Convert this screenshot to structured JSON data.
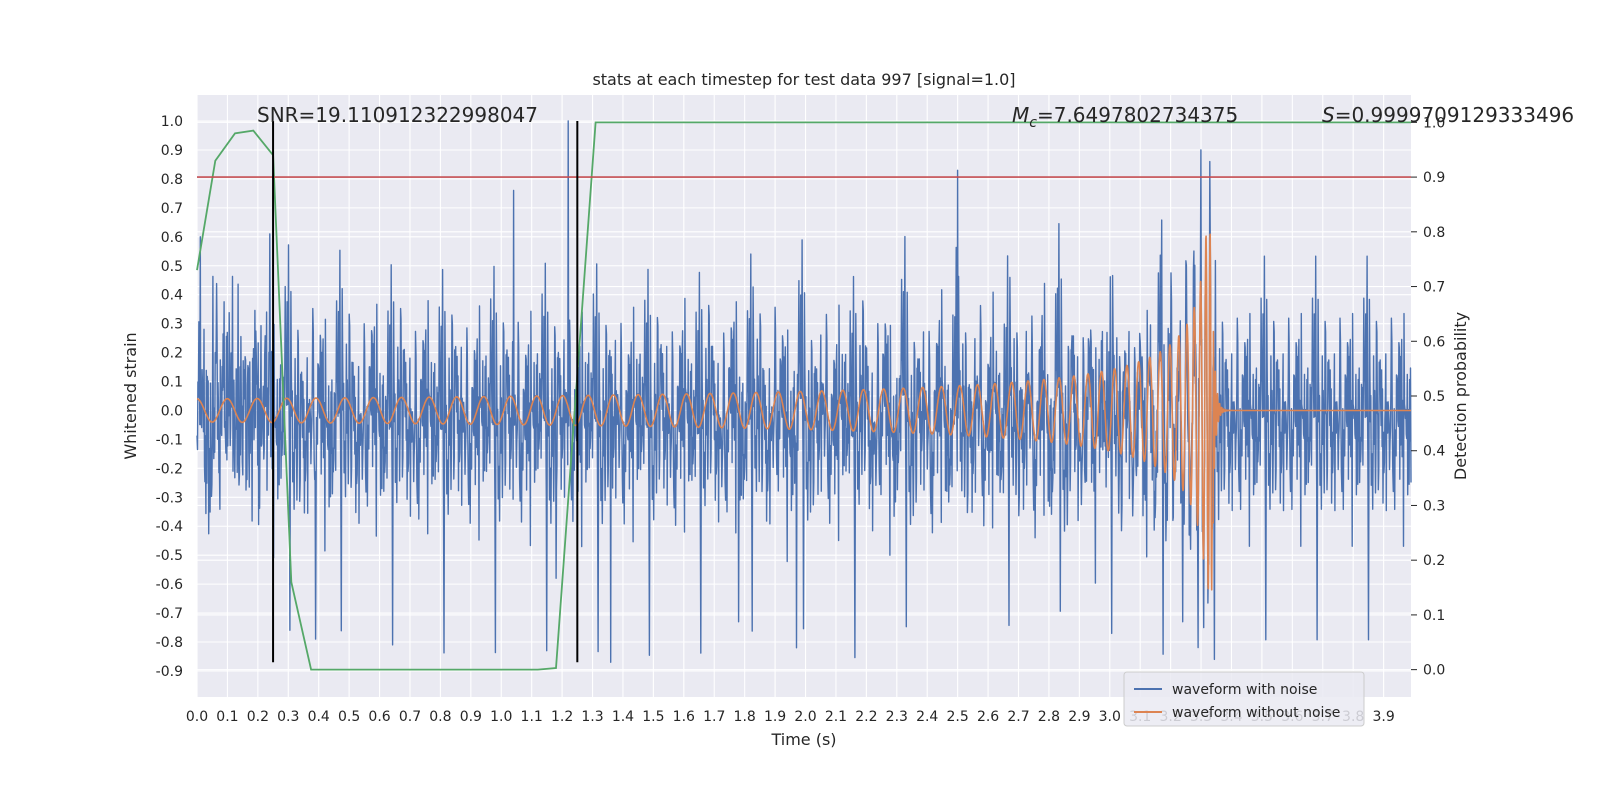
{
  "chart_data": {
    "type": "line",
    "title": "stats at each timestep for test data 997 [signal=1.0]",
    "xlabel": "Time (s)",
    "ylabel": "Whitened strain",
    "y2label": "Detection probability",
    "xlim": [
      0.0,
      3.99
    ],
    "ylim": [
      -0.99,
      1.09
    ],
    "y2lim": [
      -0.05,
      1.05
    ],
    "x_ticks": [
      "0.0",
      "0.1",
      "0.2",
      "0.3",
      "0.4",
      "0.5",
      "0.6",
      "0.7",
      "0.8",
      "0.9",
      "1.0",
      "1.1",
      "1.2",
      "1.3",
      "1.4",
      "1.5",
      "1.6",
      "1.7",
      "1.8",
      "1.9",
      "2.0",
      "2.1",
      "2.2",
      "2.3",
      "2.4",
      "2.5",
      "2.6",
      "2.7",
      "2.8",
      "2.9",
      "3.0",
      "3.1",
      "3.2",
      "3.3",
      "3.4",
      "3.5",
      "3.6",
      "3.7",
      "3.8",
      "3.9"
    ],
    "y_ticks": [
      "1.0",
      "0.9",
      "0.8",
      "0.7",
      "0.6",
      "0.5",
      "0.4",
      "0.3",
      "0.2",
      "0.1",
      "0.0",
      "-0.1",
      "-0.2",
      "-0.3",
      "-0.4",
      "-0.5",
      "-0.6",
      "-0.7",
      "-0.8",
      "-0.9"
    ],
    "y2_ticks": [
      "1.0",
      "0.9",
      "0.8",
      "0.7",
      "0.6",
      "0.5",
      "0.4",
      "0.3",
      "0.2",
      "0.1",
      "0.0"
    ],
    "threshold_y2": 0.9,
    "vertical_lines": [
      {
        "x": 0.25,
        "y_from": -0.87,
        "y_to": 1.0
      },
      {
        "x": 1.25,
        "y_from": -0.87,
        "y_to": 1.0
      }
    ],
    "annotations": {
      "snr": "SNR=19.110912322998047",
      "mc_symbol": "M",
      "mc_subscript": "c",
      "mc_value": "=7.6497802734375",
      "s_symbol": "S",
      "s_value": "=0.9999709129333496"
    },
    "legend": {
      "position": "lower-right",
      "entries": [
        "waveform with noise",
        "waveform without noise"
      ]
    },
    "series": [
      {
        "name": "waveform with noise",
        "color": "#4c72b0",
        "noise_std": 0.2,
        "peaks": [
          {
            "x": 0.01,
            "y": 0.6
          },
          {
            "x": 0.24,
            "y": 0.61
          },
          {
            "x": 0.39,
            "y": -0.79
          },
          {
            "x": 1.04,
            "y": 0.76
          },
          {
            "x": 1.18,
            "y": -0.58
          },
          {
            "x": 1.22,
            "y": 1.0
          },
          {
            "x": 1.36,
            "y": -0.87
          },
          {
            "x": 1.78,
            "y": -0.73
          },
          {
            "x": 1.97,
            "y": -0.82
          },
          {
            "x": 2.5,
            "y": 0.83
          },
          {
            "x": 3.24,
            "y": -0.73
          },
          {
            "x": 3.3,
            "y": 0.9
          },
          {
            "x": 3.33,
            "y": 0.62
          }
        ]
      },
      {
        "name": "waveform without noise",
        "color": "#dd8452",
        "chirp": {
          "t_merge": 3.34,
          "amp_start": 0.04,
          "amp_peak": 0.62,
          "freq_start": 10
        }
      },
      {
        "name": "detection probability",
        "color": "#55a868",
        "axis": "right",
        "x": [
          0.0,
          0.06,
          0.125,
          0.185,
          0.25,
          0.31,
          0.375,
          0.44,
          1.12,
          1.18,
          1.31,
          3.99
        ],
        "y": [
          0.73,
          0.93,
          0.98,
          0.985,
          0.94,
          0.16,
          0.0,
          0.0,
          0.0,
          0.003,
          1.0,
          1.0
        ]
      }
    ]
  }
}
